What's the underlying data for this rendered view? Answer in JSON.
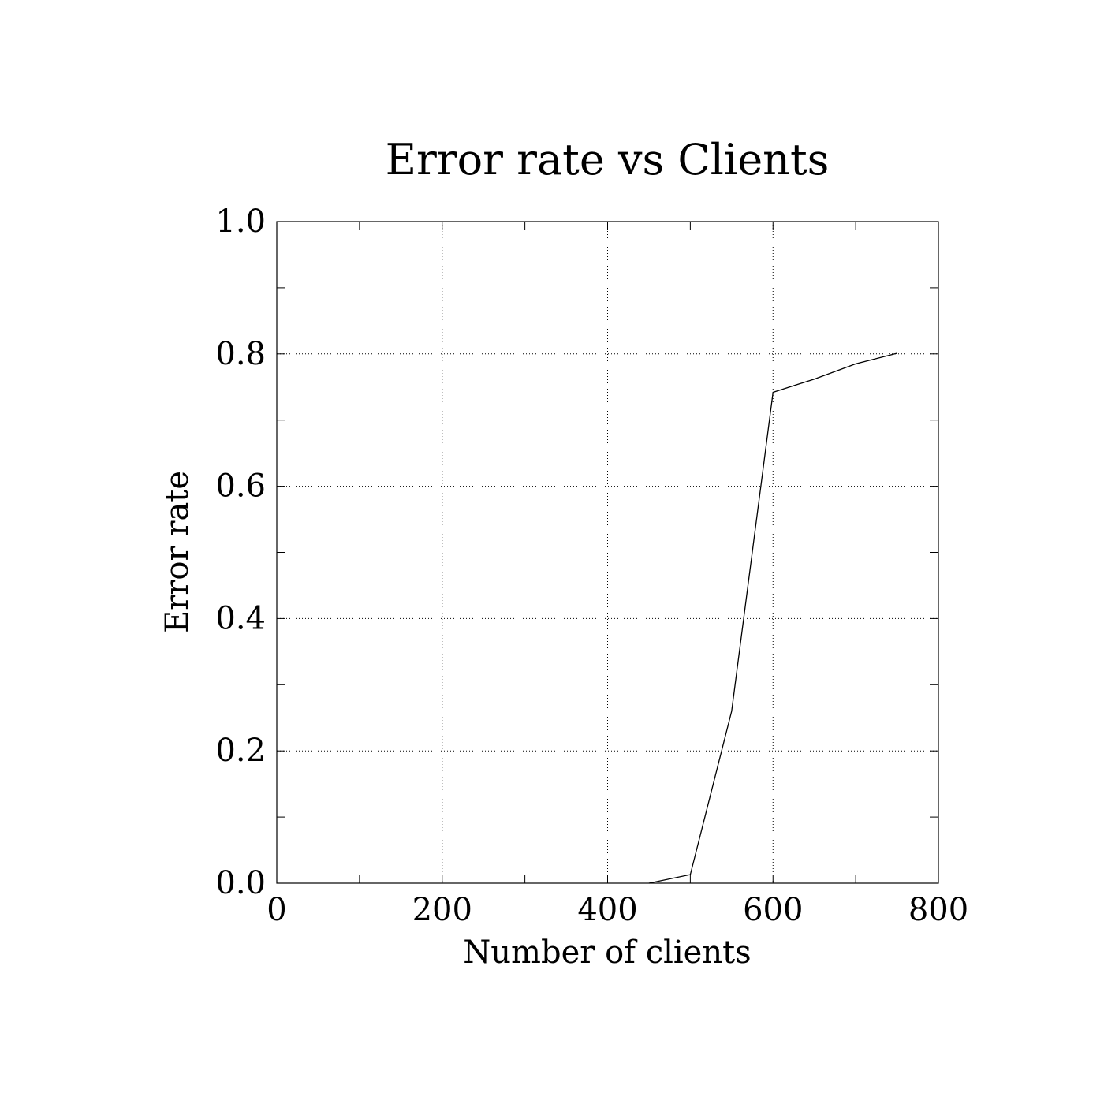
{
  "chart_data": {
    "type": "line",
    "title": "Error rate vs Clients",
    "xlabel": "Number of clients",
    "ylabel": "Error rate",
    "xlim": [
      0,
      800
    ],
    "ylim": [
      0,
      1.0
    ],
    "grid": true,
    "x_ticks": [
      {
        "value": 0,
        "label": "0"
      },
      {
        "value": 200,
        "label": "200"
      },
      {
        "value": 400,
        "label": "400"
      },
      {
        "value": 600,
        "label": "600"
      },
      {
        "value": 800,
        "label": "800"
      }
    ],
    "y_ticks": [
      {
        "value": 0.0,
        "label": "0.0"
      },
      {
        "value": 0.2,
        "label": "0.2"
      },
      {
        "value": 0.4,
        "label": "0.4"
      },
      {
        "value": 0.6,
        "label": "0.6"
      },
      {
        "value": 0.8,
        "label": "0.8"
      },
      {
        "value": 1.0,
        "label": "1.0"
      }
    ],
    "x_minor_step": 100,
    "y_minor_step": 0.1,
    "series": [
      {
        "x": [
          450,
          500,
          550,
          600,
          650,
          700,
          750
        ],
        "y": [
          0.0,
          0.013,
          0.26,
          0.742,
          0.762,
          0.785,
          0.801
        ]
      }
    ]
  }
}
